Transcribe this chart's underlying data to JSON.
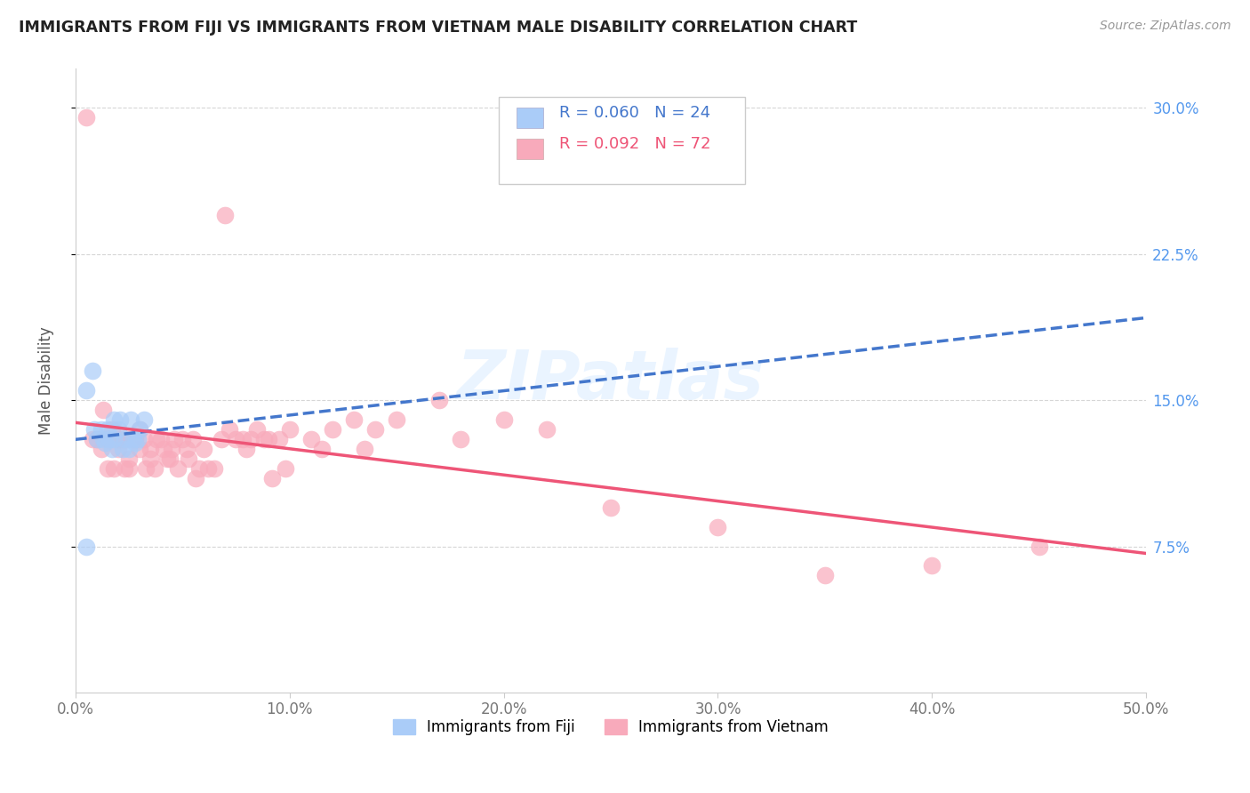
{
  "title": "IMMIGRANTS FROM FIJI VS IMMIGRANTS FROM VIETNAM MALE DISABILITY CORRELATION CHART",
  "source": "Source: ZipAtlas.com",
  "ylabel_label": "Male Disability",
  "xlim": [
    0.0,
    0.5
  ],
  "ylim": [
    0.0,
    0.32
  ],
  "xtick_positions": [
    0.0,
    0.1,
    0.2,
    0.3,
    0.4,
    0.5
  ],
  "xtick_labels": [
    "0.0%",
    "10.0%",
    "20.0%",
    "30.0%",
    "40.0%",
    "50.0%"
  ],
  "ytick_positions": [
    0.075,
    0.15,
    0.225,
    0.3
  ],
  "ytick_labels": [
    "7.5%",
    "15.0%",
    "22.5%",
    "30.0%"
  ],
  "fiji_R": 0.06,
  "fiji_N": 24,
  "vietnam_R": 0.092,
  "vietnam_N": 72,
  "fiji_color": "#aaccf8",
  "vietnam_color": "#f8aabb",
  "fiji_line_color": "#4477cc",
  "vietnam_line_color": "#ee5577",
  "watermark": "ZIPatlas",
  "fiji_x": [
    0.005,
    0.008,
    0.009,
    0.01,
    0.012,
    0.013,
    0.014,
    0.015,
    0.016,
    0.017,
    0.018,
    0.018,
    0.02,
    0.021,
    0.022,
    0.023,
    0.025,
    0.026,
    0.027,
    0.028,
    0.029,
    0.03,
    0.032,
    0.005
  ],
  "fiji_y": [
    0.155,
    0.165,
    0.135,
    0.13,
    0.135,
    0.13,
    0.128,
    0.135,
    0.13,
    0.125,
    0.13,
    0.14,
    0.135,
    0.14,
    0.125,
    0.13,
    0.125,
    0.14,
    0.13,
    0.128,
    0.13,
    0.135,
    0.14,
    0.075
  ],
  "vietnam_x": [
    0.005,
    0.008,
    0.01,
    0.012,
    0.013,
    0.015,
    0.015,
    0.017,
    0.018,
    0.02,
    0.02,
    0.022,
    0.023,
    0.024,
    0.025,
    0.025,
    0.027,
    0.028,
    0.03,
    0.03,
    0.032,
    0.033,
    0.035,
    0.035,
    0.037,
    0.038,
    0.04,
    0.041,
    0.043,
    0.044,
    0.045,
    0.046,
    0.048,
    0.05,
    0.052,
    0.053,
    0.055,
    0.056,
    0.058,
    0.06,
    0.062,
    0.065,
    0.068,
    0.07,
    0.072,
    0.075,
    0.078,
    0.08,
    0.082,
    0.085,
    0.088,
    0.09,
    0.092,
    0.095,
    0.098,
    0.1,
    0.11,
    0.115,
    0.12,
    0.13,
    0.135,
    0.14,
    0.15,
    0.17,
    0.18,
    0.2,
    0.22,
    0.25,
    0.3,
    0.35,
    0.4,
    0.45
  ],
  "vietnam_y": [
    0.295,
    0.13,
    0.13,
    0.125,
    0.145,
    0.13,
    0.115,
    0.135,
    0.115,
    0.13,
    0.125,
    0.13,
    0.115,
    0.13,
    0.12,
    0.115,
    0.13,
    0.13,
    0.135,
    0.125,
    0.13,
    0.115,
    0.125,
    0.12,
    0.115,
    0.13,
    0.13,
    0.125,
    0.12,
    0.12,
    0.125,
    0.13,
    0.115,
    0.13,
    0.125,
    0.12,
    0.13,
    0.11,
    0.115,
    0.125,
    0.115,
    0.115,
    0.13,
    0.245,
    0.135,
    0.13,
    0.13,
    0.125,
    0.13,
    0.135,
    0.13,
    0.13,
    0.11,
    0.13,
    0.115,
    0.135,
    0.13,
    0.125,
    0.135,
    0.14,
    0.125,
    0.135,
    0.14,
    0.15,
    0.13,
    0.14,
    0.135,
    0.095,
    0.085,
    0.06,
    0.065,
    0.075
  ]
}
